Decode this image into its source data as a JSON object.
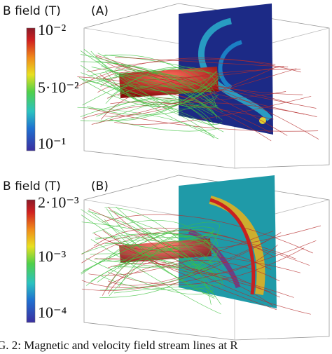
{
  "panels": [
    {
      "colorbar_title": "B field (T)",
      "label": "(A)",
      "colorbar_ticks": [
        "10⁻²",
        "5·10⁻²",
        "10⁻¹"
      ]
    },
    {
      "colorbar_title": "B field (T)",
      "label": "(B)",
      "colorbar_ticks": [
        "2·10⁻³",
        "10⁻³",
        "10⁻⁴"
      ]
    }
  ],
  "caption": "G. 2: Magnetic and velocity field stream lines at R"
}
